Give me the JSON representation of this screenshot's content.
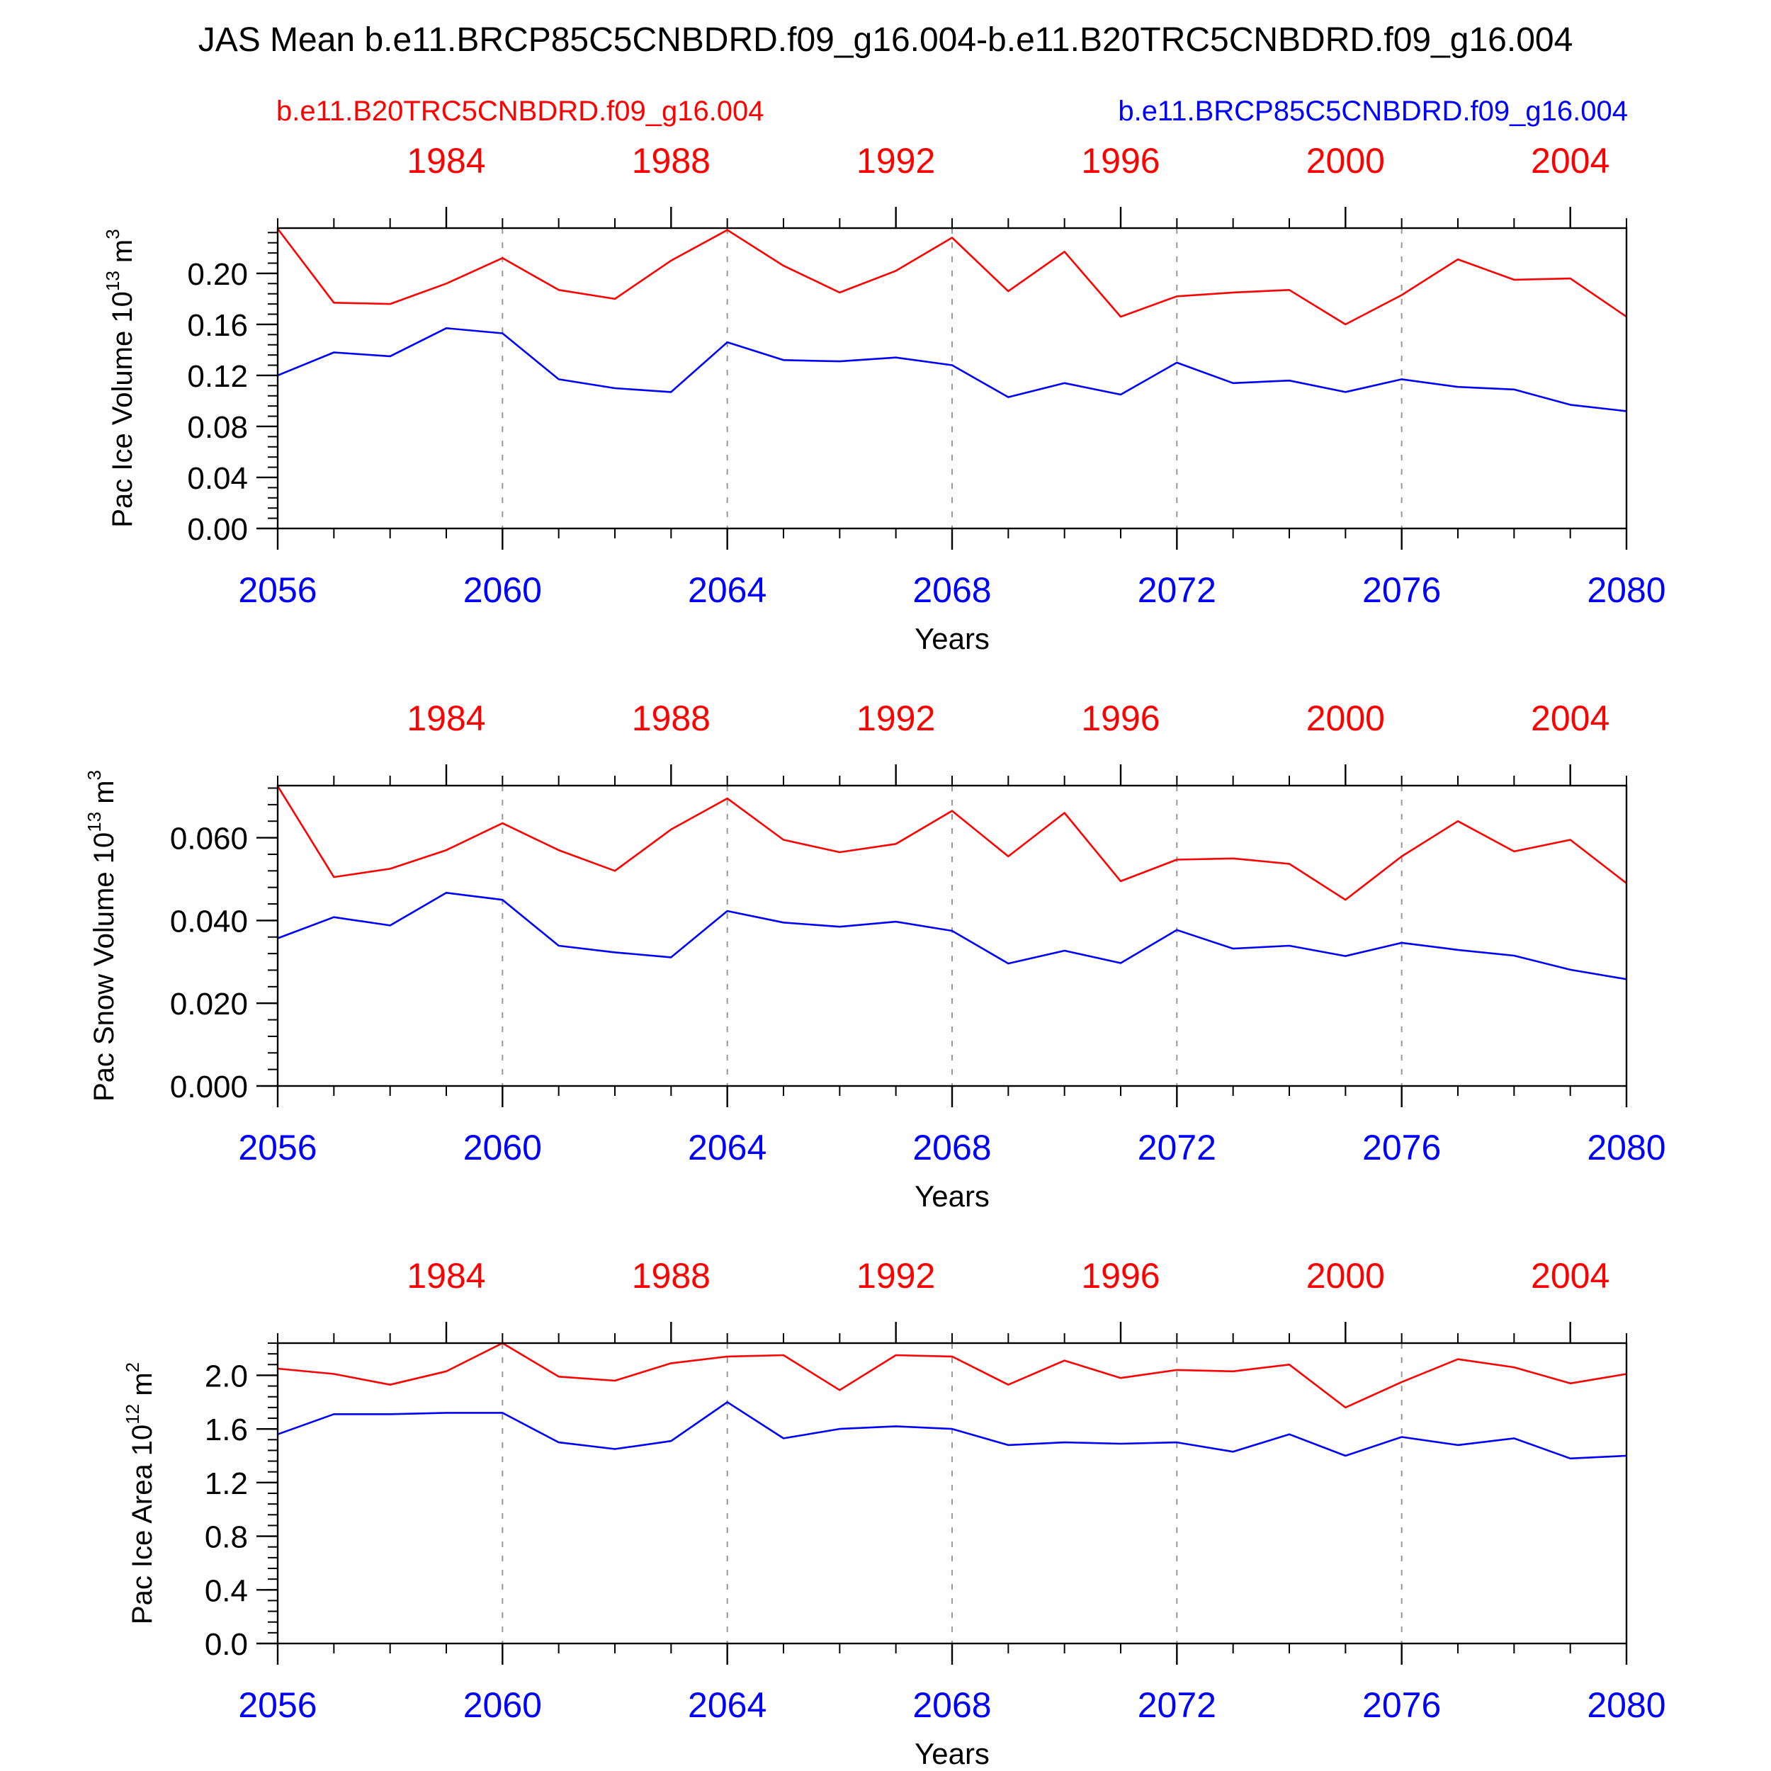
{
  "title": "JAS Mean b.e11.BRCP85C5CNBDRD.f09_g16.004-b.e11.B20TRC5CNBDRD.f09_g16.004",
  "legend": {
    "left": "b.e11.B20TRC5CNBDRD.f09_g16.004",
    "right": "b.e11.BRCP85C5CNBDRD.f09_g16.004"
  },
  "colors": {
    "red": "#ff0000",
    "blue": "#0000ff",
    "axis": "#000000",
    "grid": "#999999"
  },
  "chart_data": [
    {
      "type": "line",
      "ylabel": "Pac Ice Volume 10",
      "ylabel_sup": "13",
      "ylabel_unit": " m",
      "ylabel_unit_sup": "3",
      "xlabel": "Years",
      "ylim": [
        0,
        0.2355
      ],
      "yticks": [
        0.0,
        0.04,
        0.08,
        0.12,
        0.16,
        0.2
      ],
      "ytick_labels": [
        "0.00",
        "0.04",
        "0.08",
        "0.12",
        "0.16",
        "0.20"
      ],
      "yminor_step": 0.008,
      "xlim": [
        2056,
        2080
      ],
      "xticks_bottom": [
        2056,
        2060,
        2064,
        2068,
        2072,
        2076,
        2080
      ],
      "xticks_bottom_labels": [
        "2056",
        "2060",
        "2064",
        "2068",
        "2072",
        "2076",
        "2080"
      ],
      "xticks_top_labels": [
        "1984",
        "1988",
        "1992",
        "1996",
        "2000",
        "2004"
      ],
      "x": [
        2056,
        2057,
        2058,
        2059,
        2060,
        2061,
        2062,
        2063,
        2064,
        2065,
        2066,
        2067,
        2068,
        2069,
        2070,
        2071,
        2072,
        2073,
        2074,
        2075,
        2076,
        2077,
        2078,
        2079,
        2080
      ],
      "series": [
        {
          "color": "#ff0000",
          "axis": "top",
          "years": [
            1981,
            1982,
            1983,
            1984,
            1985,
            1986,
            1987,
            1988,
            1989,
            1990,
            1991,
            1992,
            1993,
            1994,
            1995,
            1996,
            1997,
            1998,
            1999,
            2000,
            2001,
            2002,
            2003,
            2004,
            2005
          ],
          "values": [
            0.235,
            0.177,
            0.176,
            0.192,
            0.212,
            0.187,
            0.18,
            0.21,
            0.234,
            0.206,
            0.185,
            0.202,
            0.228,
            0.186,
            0.217,
            0.166,
            0.182,
            0.185,
            0.187,
            0.16,
            0.183,
            0.211,
            0.195,
            0.196,
            0.166
          ]
        },
        {
          "color": "#0000ff",
          "axis": "bottom",
          "years": [
            2056,
            2057,
            2058,
            2059,
            2060,
            2061,
            2062,
            2063,
            2064,
            2065,
            2066,
            2067,
            2068,
            2069,
            2070,
            2071,
            2072,
            2073,
            2074,
            2075,
            2076,
            2077,
            2078,
            2079,
            2080
          ],
          "values": [
            0.12,
            0.138,
            0.135,
            0.157,
            0.153,
            0.117,
            0.11,
            0.107,
            0.146,
            0.132,
            0.131,
            0.134,
            0.128,
            0.103,
            0.114,
            0.105,
            0.13,
            0.114,
            0.116,
            0.107,
            0.117,
            0.111,
            0.109,
            0.097,
            0.092
          ]
        }
      ]
    },
    {
      "type": "line",
      "ylabel": "Pac Snow Volume 10",
      "ylabel_sup": "13",
      "ylabel_unit": " m",
      "ylabel_unit_sup": "3",
      "xlabel": "Years",
      "ylim": [
        0,
        0.0726
      ],
      "yticks": [
        0.0,
        0.02,
        0.04,
        0.06
      ],
      "ytick_labels": [
        "0.000",
        "0.020",
        "0.040",
        "0.060"
      ],
      "yminor_step": 0.004,
      "xlim": [
        2056,
        2080
      ],
      "xticks_bottom": [
        2056,
        2060,
        2064,
        2068,
        2072,
        2076,
        2080
      ],
      "xticks_bottom_labels": [
        "2056",
        "2060",
        "2064",
        "2068",
        "2072",
        "2076",
        "2080"
      ],
      "xticks_top_labels": [
        "1984",
        "1988",
        "1992",
        "1996",
        "2000",
        "2004"
      ],
      "x": [
        2056,
        2057,
        2058,
        2059,
        2060,
        2061,
        2062,
        2063,
        2064,
        2065,
        2066,
        2067,
        2068,
        2069,
        2070,
        2071,
        2072,
        2073,
        2074,
        2075,
        2076,
        2077,
        2078,
        2079,
        2080
      ],
      "series": [
        {
          "color": "#ff0000",
          "axis": "top",
          "years": [
            1981,
            1982,
            1983,
            1984,
            1985,
            1986,
            1987,
            1988,
            1989,
            1990,
            1991,
            1992,
            1993,
            1994,
            1995,
            1996,
            1997,
            1998,
            1999,
            2000,
            2001,
            2002,
            2003,
            2004,
            2005
          ],
          "values": [
            0.0725,
            0.0505,
            0.0525,
            0.057,
            0.0635,
            0.057,
            0.052,
            0.062,
            0.0695,
            0.0595,
            0.0565,
            0.0585,
            0.0665,
            0.0555,
            0.066,
            0.0495,
            0.0547,
            0.055,
            0.0537,
            0.045,
            0.0555,
            0.064,
            0.0567,
            0.0595,
            0.049
          ]
        },
        {
          "color": "#0000ff",
          "axis": "bottom",
          "years": [
            2056,
            2057,
            2058,
            2059,
            2060,
            2061,
            2062,
            2063,
            2064,
            2065,
            2066,
            2067,
            2068,
            2069,
            2070,
            2071,
            2072,
            2073,
            2074,
            2075,
            2076,
            2077,
            2078,
            2079,
            2080
          ],
          "values": [
            0.0357,
            0.0408,
            0.0388,
            0.0467,
            0.045,
            0.0339,
            0.0323,
            0.0311,
            0.0423,
            0.0395,
            0.0385,
            0.0397,
            0.0375,
            0.0296,
            0.0327,
            0.0297,
            0.0377,
            0.0332,
            0.0339,
            0.0314,
            0.0346,
            0.0329,
            0.0315,
            0.0281,
            0.0258
          ]
        }
      ]
    },
    {
      "type": "line",
      "ylabel": "Pac Ice Area 10",
      "ylabel_sup": "12",
      "ylabel_unit": " m",
      "ylabel_unit_sup": "2",
      "xlabel": "Years",
      "ylim": [
        0,
        2.24
      ],
      "yticks": [
        0.0,
        0.4,
        0.8,
        1.2,
        1.6,
        2.0
      ],
      "ytick_labels": [
        "0.0",
        "0.4",
        "0.8",
        "1.2",
        "1.6",
        "2.0"
      ],
      "yminor_step": 0.08,
      "xlim": [
        2056,
        2080
      ],
      "xticks_bottom": [
        2056,
        2060,
        2064,
        2068,
        2072,
        2076,
        2080
      ],
      "xticks_bottom_labels": [
        "2056",
        "2060",
        "2064",
        "2068",
        "2072",
        "2076",
        "2080"
      ],
      "xticks_top_labels": [
        "1984",
        "1988",
        "1992",
        "1996",
        "2000",
        "2004"
      ],
      "x": [
        2056,
        2057,
        2058,
        2059,
        2060,
        2061,
        2062,
        2063,
        2064,
        2065,
        2066,
        2067,
        2068,
        2069,
        2070,
        2071,
        2072,
        2073,
        2074,
        2075,
        2076,
        2077,
        2078,
        2079,
        2080
      ],
      "series": [
        {
          "color": "#ff0000",
          "axis": "top",
          "years": [
            1981,
            1982,
            1983,
            1984,
            1985,
            1986,
            1987,
            1988,
            1989,
            1990,
            1991,
            1992,
            1993,
            1994,
            1995,
            1996,
            1997,
            1998,
            1999,
            2000,
            2001,
            2002,
            2003,
            2004,
            2005
          ],
          "values": [
            2.05,
            2.01,
            1.93,
            2.03,
            2.24,
            1.99,
            1.96,
            2.09,
            2.14,
            2.15,
            1.89,
            2.15,
            2.14,
            1.93,
            2.11,
            1.98,
            2.04,
            2.03,
            2.08,
            1.76,
            1.95,
            2.12,
            2.06,
            1.94,
            2.01
          ]
        },
        {
          "color": "#0000ff",
          "axis": "bottom",
          "years": [
            2056,
            2057,
            2058,
            2059,
            2060,
            2061,
            2062,
            2063,
            2064,
            2065,
            2066,
            2067,
            2068,
            2069,
            2070,
            2071,
            2072,
            2073,
            2074,
            2075,
            2076,
            2077,
            2078,
            2079,
            2080
          ],
          "values": [
            1.56,
            1.71,
            1.71,
            1.72,
            1.72,
            1.5,
            1.45,
            1.51,
            1.8,
            1.53,
            1.6,
            1.62,
            1.6,
            1.48,
            1.5,
            1.49,
            1.5,
            1.43,
            1.56,
            1.4,
            1.54,
            1.48,
            1.53,
            1.38,
            1.4
          ]
        }
      ]
    }
  ]
}
